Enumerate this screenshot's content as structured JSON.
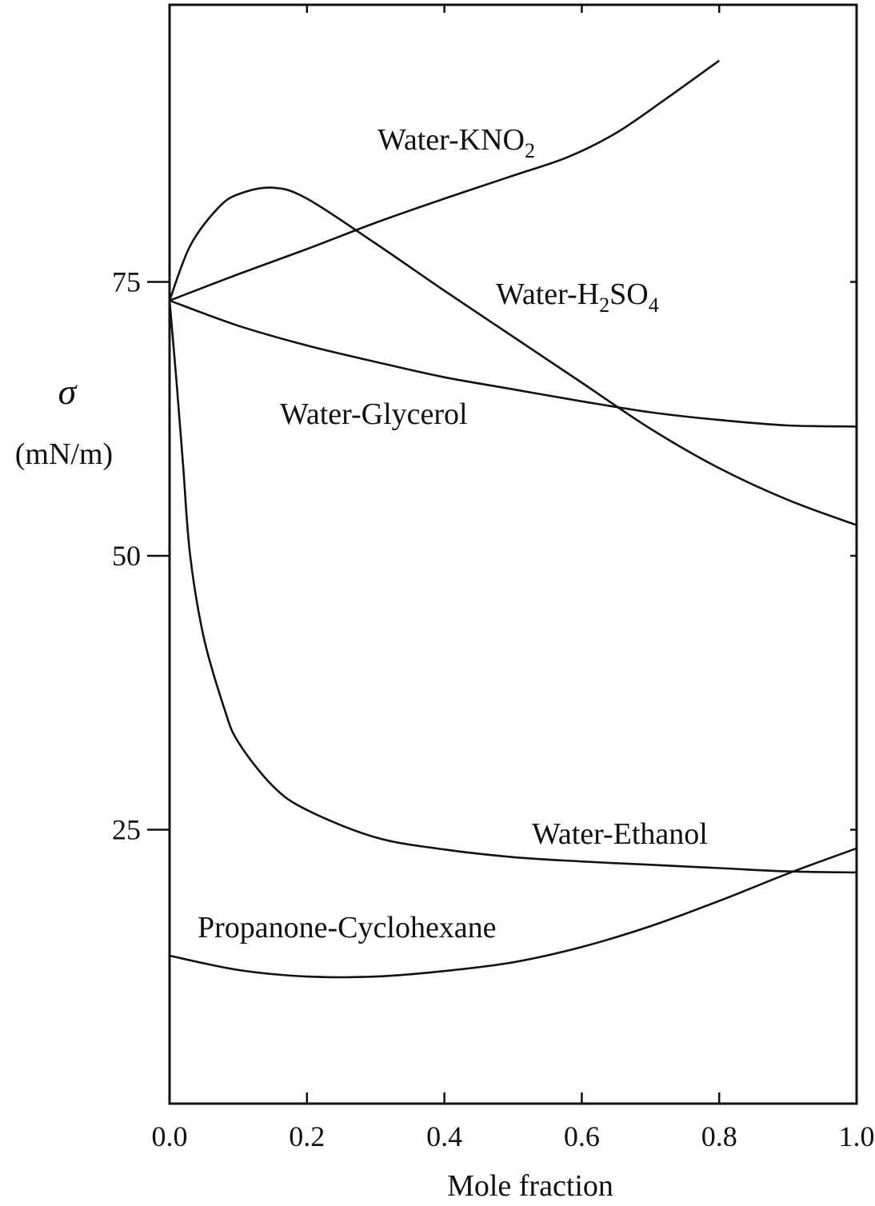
{
  "chart_data": {
    "type": "line",
    "title": "",
    "xlabel": "Mole fraction",
    "ylabel": "σ",
    "ylabel_unit": "(mN/m)",
    "xlim": [
      0.0,
      1.0
    ],
    "ylim": [
      0,
      100
    ],
    "x_ticks": [
      "0.0",
      "0.2",
      "0.4",
      "0.6",
      "0.8",
      "1.0"
    ],
    "y_ticks": [
      "25",
      "50",
      "75"
    ],
    "grid": false,
    "legend": "none",
    "series": [
      {
        "name": "Water-KNO2",
        "label_main": "Water-KNO",
        "label_sub": "2",
        "x": [
          0.0,
          0.1,
          0.2,
          0.3,
          0.4,
          0.5,
          0.58,
          0.65,
          0.72,
          0.8
        ],
        "y": [
          73.3,
          75.7,
          78.0,
          80.4,
          82.6,
          84.7,
          86.4,
          88.6,
          91.6,
          95.2
        ]
      },
      {
        "name": "Water-H2SO4",
        "label_parts": [
          "Water-H",
          "2",
          "SO",
          "4"
        ],
        "x": [
          0.0,
          0.03,
          0.07,
          0.1,
          0.15,
          0.2,
          0.3,
          0.4,
          0.5,
          0.6,
          0.7,
          0.8,
          0.9,
          1.0
        ],
        "y": [
          73.3,
          78.3,
          81.7,
          83.0,
          83.6,
          82.6,
          78.5,
          74.2,
          70.0,
          65.8,
          61.6,
          58.0,
          55.1,
          52.8
        ]
      },
      {
        "name": "Water-Glycerol",
        "x": [
          0.0,
          0.1,
          0.2,
          0.3,
          0.4,
          0.5,
          0.6,
          0.7,
          0.8,
          0.9,
          1.0
        ],
        "y": [
          73.3,
          71.0,
          69.2,
          67.7,
          66.3,
          65.2,
          64.1,
          63.1,
          62.4,
          61.9,
          61.8
        ]
      },
      {
        "name": "Water-Ethanol",
        "x": [
          0.0,
          0.01,
          0.02,
          0.03,
          0.05,
          0.08,
          0.1,
          0.15,
          0.2,
          0.3,
          0.4,
          0.5,
          0.6,
          0.7,
          0.8,
          0.9,
          1.0
        ],
        "y": [
          73.3,
          66.0,
          58.0,
          50.0,
          42.5,
          36.0,
          33.0,
          29.0,
          26.8,
          24.3,
          23.2,
          22.5,
          22.1,
          21.8,
          21.5,
          21.2,
          21.1
        ]
      },
      {
        "name": "Propanone-Cyclohexane",
        "x": [
          0.0,
          0.1,
          0.2,
          0.3,
          0.4,
          0.5,
          0.6,
          0.7,
          0.8,
          0.9,
          1.0
        ],
        "y": [
          13.5,
          12.2,
          11.6,
          11.6,
          12.1,
          12.9,
          14.3,
          16.2,
          18.5,
          21.0,
          23.3
        ]
      }
    ]
  }
}
